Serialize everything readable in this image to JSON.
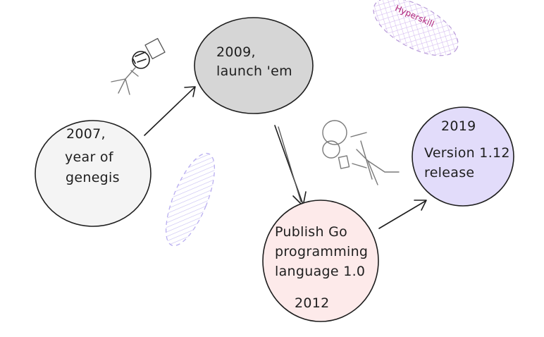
{
  "nodes": {
    "n2007": {
      "line1": "2007,",
      "line2": "year of",
      "line3": "genegis"
    },
    "n2009": {
      "line1": "2009,",
      "line2": "launch 'em"
    },
    "n2012": {
      "line1": "Publish Go",
      "line2": "programming",
      "line3": "language 1.0",
      "line4": "2012"
    },
    "n2019": {
      "line1": "2019",
      "line2": "Version 1.12",
      "line3": "release"
    }
  },
  "decor": {
    "badge_text": "Hyperskill"
  },
  "colors": {
    "stroke": "#1e1e1e",
    "fill_2007": "#c9c9c9",
    "fill_2009": "#7a7a7a",
    "fill_2012": "#f3a3a3",
    "fill_2019": "#8f7be6",
    "badge_fill": "#c9b6ee",
    "badge_text": "#b0247a",
    "ellipse_fill": "#b9aef0"
  }
}
